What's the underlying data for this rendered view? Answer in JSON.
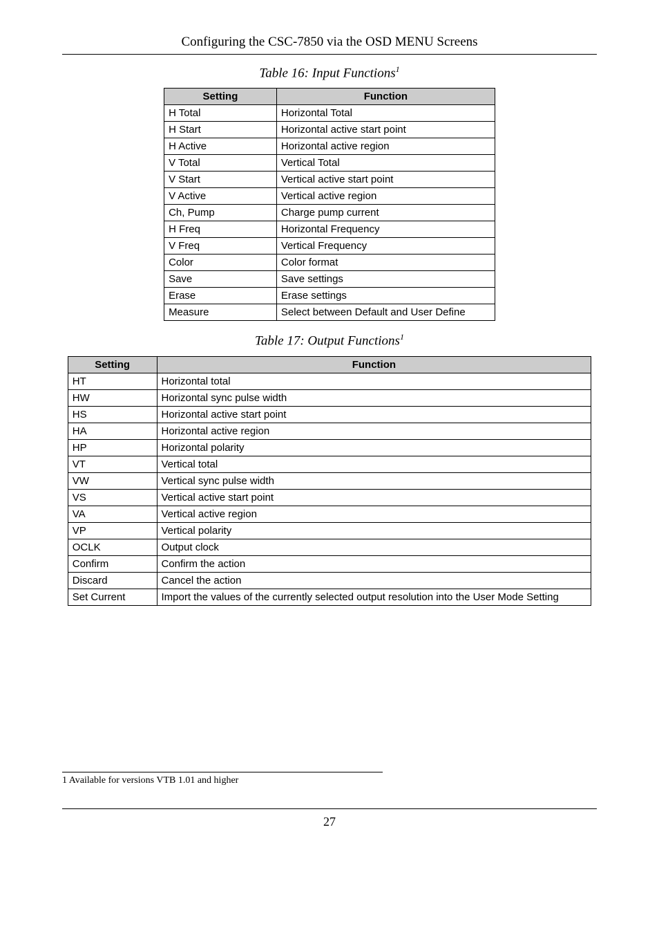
{
  "header": "Configuring the CSC-7850 via the OSD MENU Screens",
  "table16": {
    "caption": "Table 16: Input Functions",
    "caption_sup": "1",
    "headers": [
      "Setting",
      "Function"
    ],
    "rows": [
      [
        "H Total",
        "Horizontal Total"
      ],
      [
        "H Start",
        "Horizontal active start point"
      ],
      [
        "H Active",
        "Horizontal active region"
      ],
      [
        "V Total",
        "Vertical Total"
      ],
      [
        "V Start",
        "Vertical active start point"
      ],
      [
        "V Active",
        "Vertical active region"
      ],
      [
        "Ch, Pump",
        "Charge pump current"
      ],
      [
        "H Freq",
        "Horizontal Frequency"
      ],
      [
        "V Freq",
        "Vertical Frequency"
      ],
      [
        "Color",
        "Color format"
      ],
      [
        "Save",
        "Save settings"
      ],
      [
        "Erase",
        "Erase settings"
      ],
      [
        "Measure",
        "Select between Default and User Define"
      ]
    ]
  },
  "table17": {
    "caption": "Table 17: Output Functions",
    "caption_sup": "1",
    "headers": [
      "Setting",
      "Function"
    ],
    "rows": [
      [
        "HT",
        "Horizontal total"
      ],
      [
        "HW",
        "Horizontal sync pulse width"
      ],
      [
        "HS",
        "Horizontal active start point"
      ],
      [
        "HA",
        "Horizontal active region"
      ],
      [
        "HP",
        "Horizontal polarity"
      ],
      [
        "VT",
        "Vertical total"
      ],
      [
        "VW",
        "Vertical sync pulse width"
      ],
      [
        "VS",
        "Vertical active start point"
      ],
      [
        "VA",
        "Vertical active region"
      ],
      [
        "VP",
        "Vertical polarity"
      ],
      [
        "OCLK",
        "Output clock"
      ],
      [
        "Confirm",
        "Confirm the action"
      ],
      [
        "Discard",
        "Cancel the action"
      ],
      [
        "Set Current",
        "Import the values of the currently selected output resolution into the User Mode Setting"
      ]
    ]
  },
  "footnote": "1 Available for versions VTB 1.01 and higher",
  "page_number": "27"
}
